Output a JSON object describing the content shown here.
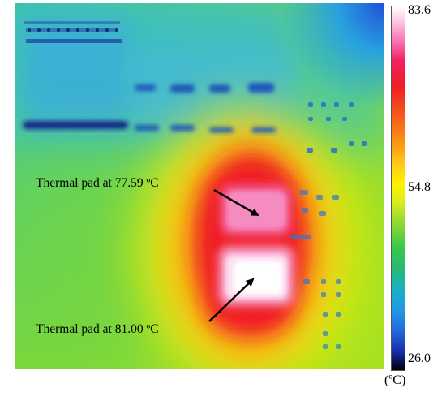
{
  "image": {
    "annotations": [
      {
        "text": "Thermal pad at 77.59 ºC"
      },
      {
        "text": "Thermal pad at 81.00 ºC"
      }
    ]
  },
  "colorbar": {
    "max_label": "83.6",
    "mid_label": "54.8",
    "min_label": "26.0",
    "unit": "(ºC)"
  },
  "colors": {
    "hot": "#ffffff",
    "warm": "#ee1d23",
    "mid": "#fff200",
    "cool": "#3cc84a",
    "cold": "#2060d8"
  }
}
